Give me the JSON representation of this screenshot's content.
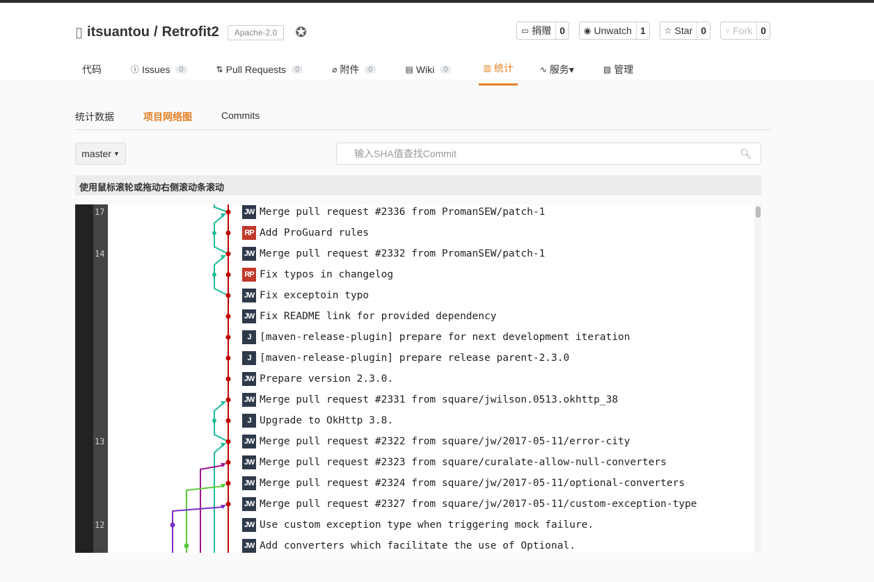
{
  "repo": {
    "owner": "itsuantou",
    "name": "Retrofit2",
    "separator": " / ",
    "license": "Apache-2.0"
  },
  "actions": [
    {
      "label": "捐赠",
      "count": "0",
      "icon": "donate-icon"
    },
    {
      "label": "Unwatch",
      "count": "1",
      "icon": "eye-icon"
    },
    {
      "label": "Star",
      "count": "0",
      "icon": "star-icon"
    },
    {
      "label": "Fork",
      "count": "0",
      "icon": "fork-icon",
      "disabled": true
    }
  ],
  "nav": [
    {
      "label": "代码",
      "icon": "</>"
    },
    {
      "label": "Issues",
      "count": "0",
      "icon": "ⓘ"
    },
    {
      "label": "Pull Requests",
      "count": "0",
      "icon": "⇅"
    },
    {
      "label": "附件",
      "count": "0",
      "icon": "⌀"
    },
    {
      "label": "Wiki",
      "count": "0",
      "icon": "▤"
    },
    {
      "label": "统计",
      "icon": "▥",
      "active": true
    },
    {
      "label": "服务▾",
      "icon": "∿"
    },
    {
      "label": "管理",
      "icon": "▧"
    }
  ],
  "subtabs": [
    "统计数据",
    "项目网络图",
    "Commits"
  ],
  "branch": "master",
  "search_placeholder": "输入SHA值查找Commit",
  "hint": "使用鼠标滚轮或拖动右侧滚动条滚动",
  "accent": "#e67e22",
  "line_labels": [
    {
      "row": 0,
      "text": "17"
    },
    {
      "row": 2,
      "text": "14"
    },
    {
      "row": 11,
      "text": "13"
    },
    {
      "row": 15,
      "text": "12"
    }
  ],
  "commits": [
    {
      "author": "JW",
      "message": "Merge pull request #2336 from PromanSEW/patch-1"
    },
    {
      "author": "RP",
      "message": "Add ProGuard rules"
    },
    {
      "author": "JW",
      "message": "Merge pull request #2332 from PromanSEW/patch-1"
    },
    {
      "author": "RP",
      "message": "Fix typos in changelog"
    },
    {
      "author": "JW",
      "message": "Fix exceptoin typo"
    },
    {
      "author": "JW",
      "message": "Fix README link for provided dependency"
    },
    {
      "author": "J",
      "message": "[maven-release-plugin] prepare for next development iteration"
    },
    {
      "author": "J",
      "message": "[maven-release-plugin] prepare release parent-2.3.0"
    },
    {
      "author": "JW",
      "message": "Prepare version 2.3.0."
    },
    {
      "author": "JW",
      "message": "Merge pull request #2331 from square/jwilson.0513.okhttp_38"
    },
    {
      "author": "J",
      "message": "Upgrade to OkHttp 3.8."
    },
    {
      "author": "JW",
      "message": "Merge pull request #2322 from square/jw/2017-05-11/error-city"
    },
    {
      "author": "JW",
      "message": "Merge pull request #2323 from square/curalate-allow-null-converters"
    },
    {
      "author": "JW",
      "message": "Merge pull request #2324 from square/jw/2017-05-11/optional-converters"
    },
    {
      "author": "JW",
      "message": "Merge pull request #2327 from square/jw/2017-05-11/custom-exception-type"
    },
    {
      "author": "JW",
      "message": "Use custom exception type when triggering mock failure."
    },
    {
      "author": "JW",
      "message": "Add converters which facilitate the use of Optional."
    }
  ]
}
